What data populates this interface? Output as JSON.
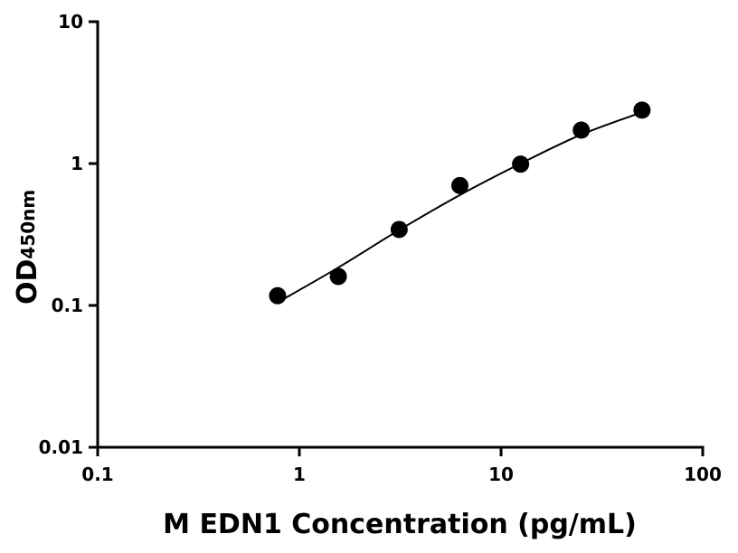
{
  "chart_data": {
    "type": "scatter",
    "x_label": "M EDN1 Concentration (pg/mL)",
    "y_label": "OD",
    "y_label_sub": "450nm",
    "xscale": "log",
    "yscale": "log",
    "xlim": [
      0.1,
      100
    ],
    "xticks": [
      0.1,
      1,
      10,
      100
    ],
    "ylim": [
      0.01,
      10
    ],
    "yticks": [
      0.01,
      0.1,
      1,
      10
    ],
    "series": [
      {
        "color": "#000000",
        "x": [
          0.78,
          1.56,
          3.125,
          6.25,
          12.5,
          25,
          50
        ],
        "values": [
          0.117,
          0.16,
          0.343,
          0.7,
          0.99,
          1.72,
          2.38
        ]
      }
    ],
    "fit": {
      "color": "#000000",
      "x": [
        0.78,
        1.56,
        3.125,
        6.25,
        12.5,
        25,
        50
      ],
      "values": [
        0.105,
        0.185,
        0.34,
        0.6,
        1.0,
        1.6,
        2.3
      ]
    }
  }
}
